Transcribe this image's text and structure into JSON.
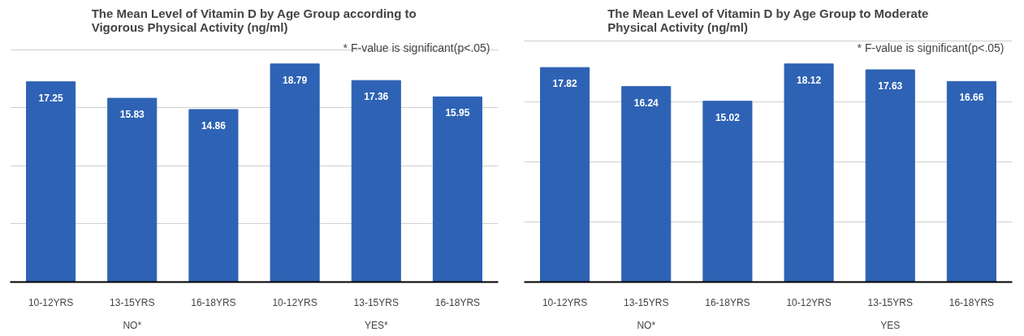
{
  "chart_data": [
    {
      "type": "bar",
      "title": "The Mean Level of Vitamin D by Age Group according to\nVigorous Physical Activity (ng/ml)",
      "categories": [
        "10-12YRS",
        "13-15YRS",
        "16-18YRS",
        "10-12YRS",
        "13-15YRS",
        "16-18YRS"
      ],
      "values": [
        17.25,
        15.83,
        14.86,
        18.79,
        17.36,
        15.95
      ],
      "color": "#2e62b4",
      "data_labels": true,
      "tick_labels": "x",
      "grid": "y",
      "annotations": [
        "* F-value is significant(p<.05)",
        "NO*",
        "YES*"
      ]
    },
    {
      "type": "bar",
      "title": "The Mean Level of Vitamin D by Age Group to Moderate\nPhysical Activity (ng/ml)",
      "categories": [
        "10-12YRS",
        "13-15YRS",
        "16-18YRS",
        "10-12YRS",
        "13-15YRS",
        "16-18YRS"
      ],
      "values": [
        17.82,
        16.24,
        15.02,
        18.12,
        17.63,
        16.66
      ],
      "color": "#2e62b4",
      "data_labels": true,
      "tick_labels": "x",
      "grid": "y",
      "annotations": [
        "* F-value is significant(p<.05)",
        "NO*",
        "YES"
      ]
    }
  ]
}
